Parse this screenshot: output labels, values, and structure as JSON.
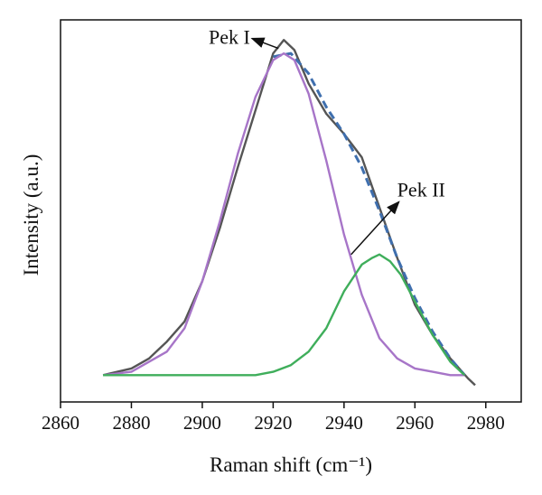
{
  "chart_data": {
    "type": "line",
    "xlabel": "Raman shift (cm⁻¹)",
    "ylabel": "Intensity (a.u.)",
    "xlim": [
      2860,
      2990
    ],
    "ylim": [
      -0.08,
      1.06
    ],
    "x_ticks": [
      2860,
      2880,
      2900,
      2920,
      2940,
      2960,
      2980
    ],
    "grid": false,
    "legend": "none",
    "series": [
      {
        "color": "#555555",
        "style": "solid",
        "x": [
          2872,
          2880,
          2885,
          2890,
          2895,
          2900,
          2905,
          2910,
          2915,
          2920,
          2923,
          2926,
          2930,
          2935,
          2940,
          2945,
          2950,
          2955,
          2960,
          2965,
          2970,
          2975,
          2977
        ],
        "y": [
          0.0,
          0.02,
          0.05,
          0.1,
          0.16,
          0.28,
          0.44,
          0.62,
          0.79,
          0.96,
          1.0,
          0.97,
          0.87,
          0.78,
          0.72,
          0.65,
          0.5,
          0.35,
          0.21,
          0.12,
          0.05,
          -0.01,
          -0.03
        ]
      },
      {
        "color": "#3f6fae",
        "style": "dashed",
        "x": [
          2920,
          2925,
          2930,
          2935,
          2940,
          2945,
          2950,
          2955,
          2960,
          2965,
          2970,
          2974
        ],
        "y": [
          0.95,
          0.96,
          0.9,
          0.8,
          0.72,
          0.62,
          0.49,
          0.35,
          0.23,
          0.13,
          0.05,
          0.0
        ]
      },
      {
        "color": "#a775c8",
        "style": "solid",
        "x": [
          2872,
          2880,
          2890,
          2895,
          2900,
          2905,
          2910,
          2915,
          2920,
          2923,
          2926,
          2930,
          2935,
          2940,
          2945,
          2950,
          2955,
          2960,
          2965,
          2970,
          2974
        ],
        "y": [
          0.0,
          0.01,
          0.07,
          0.14,
          0.28,
          0.46,
          0.66,
          0.83,
          0.94,
          0.96,
          0.94,
          0.84,
          0.64,
          0.42,
          0.24,
          0.11,
          0.05,
          0.02,
          0.01,
          0.0,
          0.0
        ]
      },
      {
        "color": "#3fae5b",
        "style": "solid",
        "x": [
          2872,
          2900,
          2915,
          2920,
          2925,
          2930,
          2935,
          2940,
          2945,
          2948,
          2950,
          2953,
          2956,
          2960,
          2965,
          2970,
          2974
        ],
        "y": [
          0.0,
          0.0,
          0.0,
          0.01,
          0.03,
          0.07,
          0.14,
          0.25,
          0.33,
          0.35,
          0.36,
          0.34,
          0.3,
          0.22,
          0.12,
          0.04,
          0.0
        ]
      }
    ],
    "annotations": [
      {
        "text": "Pek I",
        "anchor_x": 2921.5,
        "anchor_y": 0.975,
        "text_x": 2913.5,
        "text_y": 1.01
      },
      {
        "text": "Pek II",
        "anchor_x": 2942,
        "anchor_y": 0.36,
        "text_x": 2955,
        "text_y": 0.555
      }
    ]
  }
}
